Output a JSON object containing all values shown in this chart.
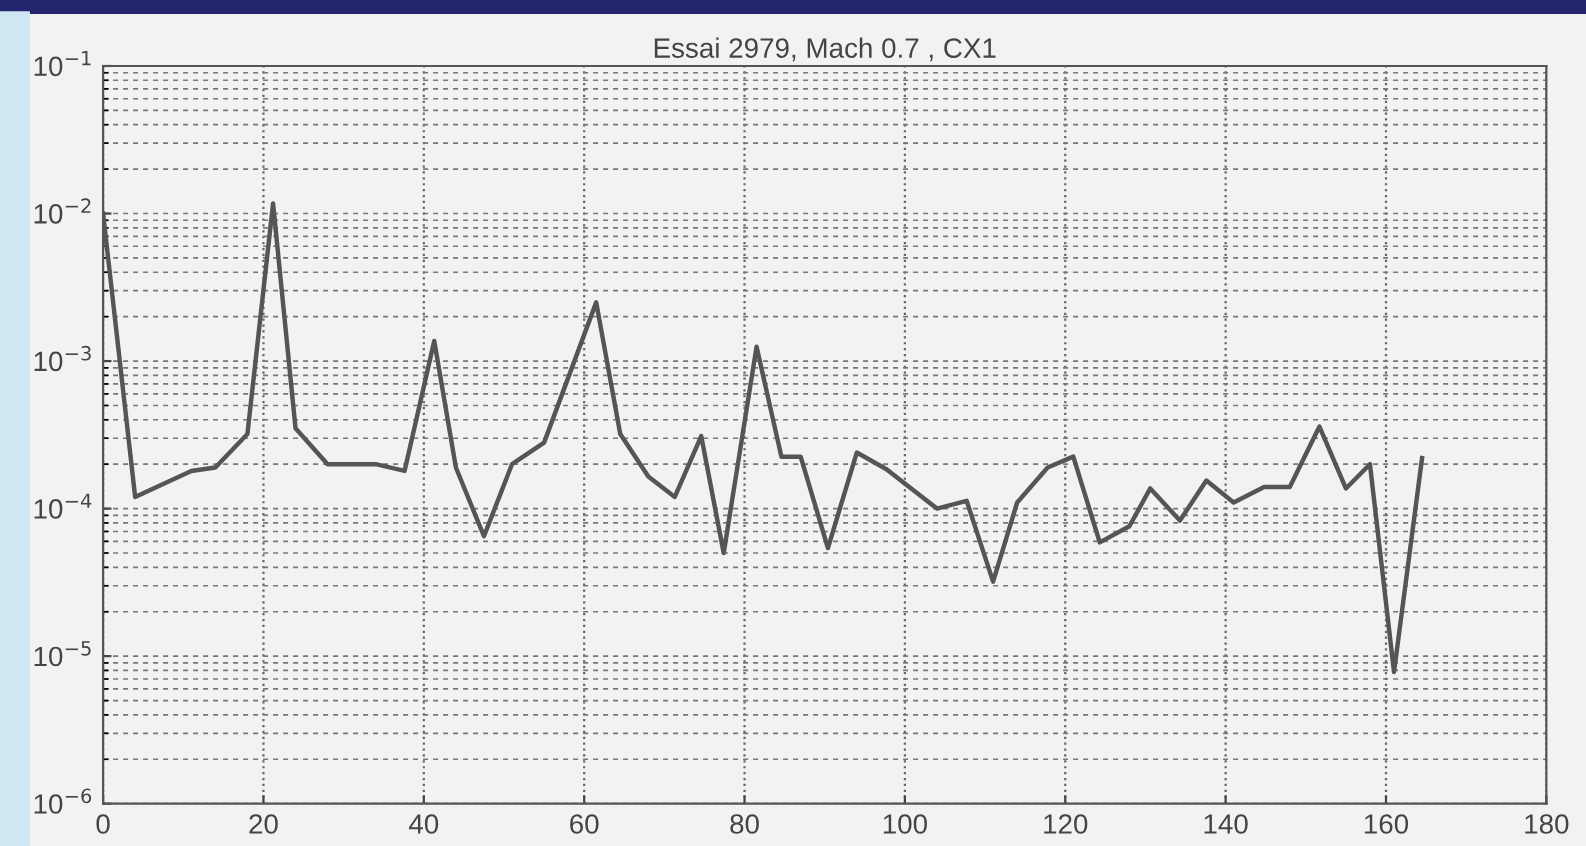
{
  "chart_data": {
    "type": "line",
    "title": "Essai 2979, Mach 0.7 , CX1",
    "x": [
      0,
      4,
      11,
      14,
      18,
      21.2,
      24,
      28,
      34,
      37.6,
      41.3,
      44,
      47.5,
      51,
      55,
      61.5,
      64.5,
      68,
      71.3,
      74.6,
      77.4,
      81.5,
      84.6,
      87,
      90.4,
      94,
      97.7,
      104,
      107.7,
      111,
      114,
      117.8,
      121,
      124.3,
      128,
      130.6,
      134.3,
      137.6,
      141,
      144.8,
      148,
      151.7,
      155,
      158,
      161,
      164.5
    ],
    "series": [
      {
        "color": "#555555",
        "values": [
          0.01,
          0.00012,
          0.00018,
          0.00019,
          0.00032,
          0.0117,
          0.00035,
          0.0002,
          0.0002,
          0.00018,
          0.00137,
          0.00019,
          6.5e-05,
          0.0002,
          0.00028,
          0.0025,
          0.00032,
          0.000165,
          0.00012,
          0.00031,
          5e-05,
          0.00125,
          0.000225,
          0.000225,
          5.4e-05,
          0.00024,
          0.000185,
          0.0001,
          0.000113,
          3.2e-05,
          0.00011,
          0.00019,
          0.000225,
          5.9e-05,
          7.6e-05,
          0.000137,
          8.3e-05,
          0.000155,
          0.00011,
          0.00014,
          0.00014,
          0.00036,
          0.000137,
          0.0002,
          7.8e-06,
          0.00022
        ]
      }
    ],
    "log": true,
    "xlim": [
      0,
      180
    ],
    "xticks": [
      0,
      20,
      40,
      60,
      80,
      100,
      120,
      140,
      160,
      180
    ],
    "ylim": [
      1e-06,
      0.1
    ],
    "yticks": [
      {
        "value": 1e-06,
        "label": "10$^{−6}$"
      },
      {
        "value": 1e-05,
        "label": "10$^{−5}$"
      },
      {
        "value": 0.0001,
        "label": "10$^{−4}$"
      },
      {
        "value": 0.001,
        "label": "10$^{−3}$"
      },
      {
        "value": 0.01,
        "label": "10$^{−2}$"
      },
      {
        "value": 0.1,
        "label": "10$^{−1}$"
      }
    ],
    "grid": true,
    "marker": "none",
    "line_style": "solid"
  }
}
